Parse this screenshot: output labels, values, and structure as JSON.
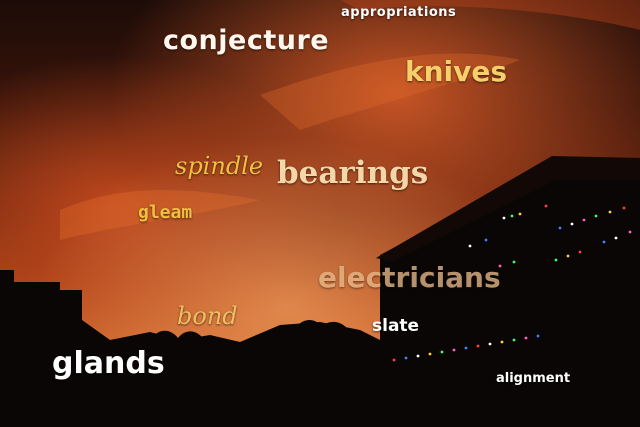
{
  "scene": {
    "sky_colors": [
      "#1c0c08",
      "#5a1e0c",
      "#b4461a",
      "#d9662a",
      "#f0a060"
    ],
    "silhouette_color": "#0a0605",
    "light_colors": [
      "#ff4040",
      "#40ff60",
      "#4080ff",
      "#ffd040",
      "#ffffff",
      "#ff60c0"
    ]
  },
  "words": {
    "appropriations": {
      "text": "appropriations",
      "color": "#ffffff"
    },
    "conjecture": {
      "text": "conjecture",
      "color": "#fff7ee"
    },
    "knives": {
      "text": "knives",
      "color": "#f6cf6a"
    },
    "spindle": {
      "text": "spindle",
      "color": "#f0c040"
    },
    "bearings": {
      "text": "bearings",
      "color": "#f4d7a8"
    },
    "gleam": {
      "text": "gleam",
      "color": "#f2c040"
    },
    "electricians": {
      "text": "electricians",
      "color": "#e8b888"
    },
    "bond": {
      "text": "bond",
      "color": "#f0c060"
    },
    "slate": {
      "text": "slate",
      "color": "#ffffff"
    },
    "glands": {
      "text": "glands",
      "color": "#ffffff"
    },
    "alignment": {
      "text": "alignment",
      "color": "#ffffff"
    }
  }
}
